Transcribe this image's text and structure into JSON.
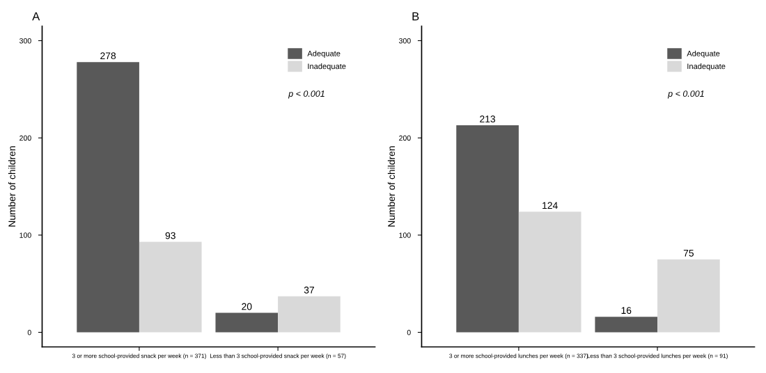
{
  "chart_data": [
    {
      "type": "bar",
      "title": "A",
      "ylabel": "Number of children",
      "categories": [
        "3 or more school-provided snack per week (n = 371)",
        "Less than 3 school-provided snack per week (n = 57)"
      ],
      "series": [
        {
          "name": "Adequate",
          "color": "#595959",
          "values": [
            278,
            20
          ]
        },
        {
          "name": "Inadequate",
          "color": "#d9d9d9",
          "values": [
            93,
            37
          ]
        }
      ],
      "ylim": [
        -15,
        315
      ],
      "yticks": [
        0,
        100,
        200,
        300
      ],
      "grid": false,
      "legend": "top right",
      "data_labels": true,
      "annotations": [
        "p < 0.001"
      ]
    },
    {
      "type": "bar",
      "title": "B",
      "ylabel": "Number of children",
      "categories": [
        "3 or more school-provided lunches per week (n = 337)",
        "Less than 3 school-provided lunches per week (n = 91)"
      ],
      "series": [
        {
          "name": "Adequate",
          "color": "#595959",
          "values": [
            213,
            16
          ]
        },
        {
          "name": "Inadequate",
          "color": "#d9d9d9",
          "values": [
            124,
            75
          ]
        }
      ],
      "ylim": [
        -15,
        315
      ],
      "yticks": [
        0,
        100,
        200,
        300
      ],
      "grid": false,
      "legend": "top right",
      "data_labels": true,
      "annotations": [
        "p < 0.001"
      ]
    }
  ]
}
